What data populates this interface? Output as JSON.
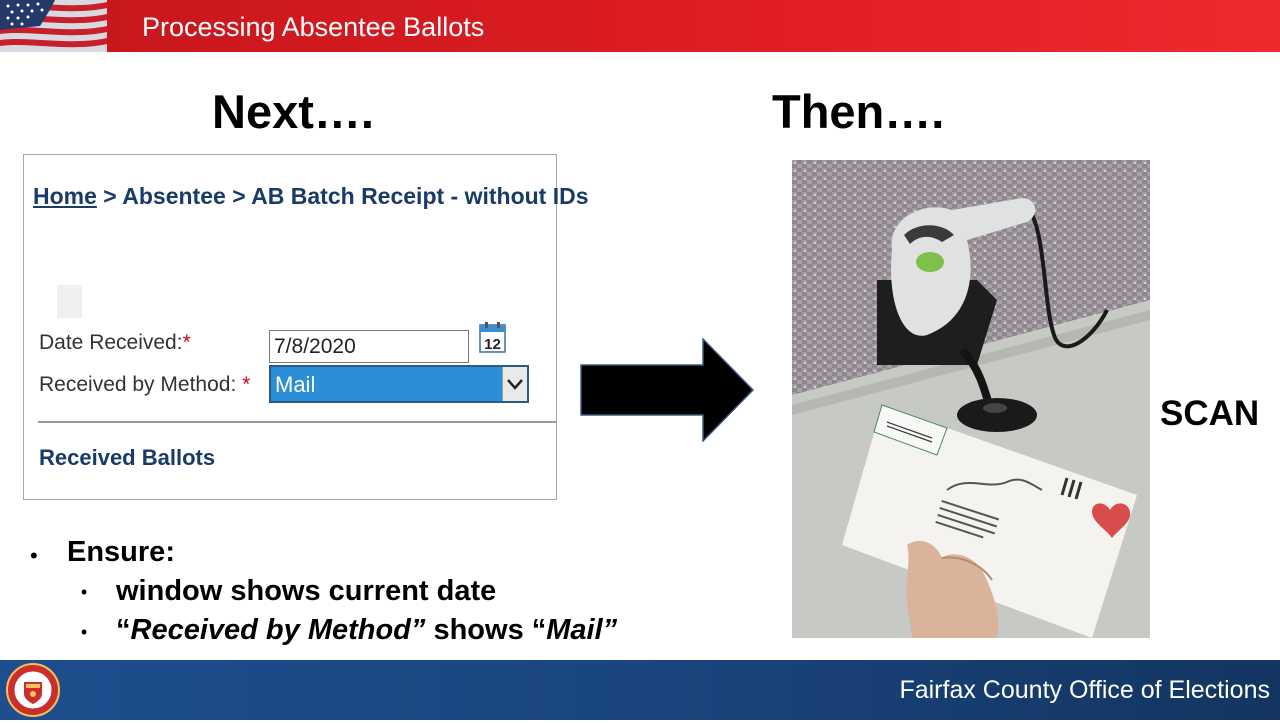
{
  "header": {
    "title": "Processing Absentee Ballots"
  },
  "headings": {
    "left": "Next….",
    "right": "Then…."
  },
  "panel": {
    "breadcrumb": {
      "home": "Home",
      "sep1": " > ",
      "absentee": "Absentee",
      "sep2": " > ",
      "current": "AB Batch Receipt - without IDs"
    },
    "date_label": "Date Received:",
    "required_marker": "*",
    "date_value": "7/8/2020",
    "calendar_day": "12",
    "method_label": "Received by Method: ",
    "method_value": "Mail",
    "section_title": "Received Ballots"
  },
  "scan_label": "SCAN",
  "bullets": {
    "ensure": "Ensure:",
    "item1": "window shows current date",
    "item2_q1": "“",
    "item2_italic1": "Received by Method”",
    "item2_mid": " shows “",
    "item2_italic2": "Mail”"
  },
  "footer": {
    "org": "Fairfax County Office of Elections"
  },
  "colors": {
    "header_red": "#e01e24",
    "footer_blue": "#1a457f",
    "select_blue": "#2a8fd6",
    "link_navy": "#1a3a67"
  }
}
